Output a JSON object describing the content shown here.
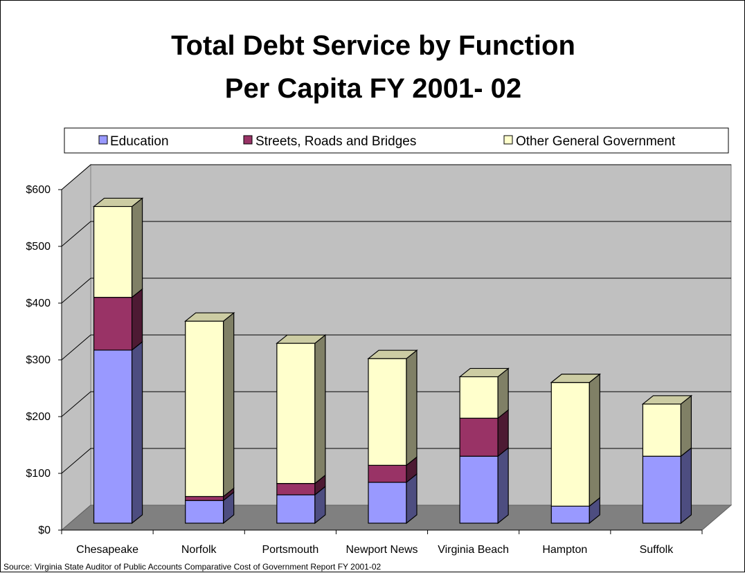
{
  "chart_data": {
    "type": "bar",
    "stacked": true,
    "style": "3d",
    "title_lines": [
      "Total Debt Service by Function",
      "Per Capita FY 2001- 02"
    ],
    "categories": [
      "Chesapeake",
      "Norfolk",
      "Portsmouth",
      "Newport News",
      "Virginia Beach",
      "Hampton",
      "Suffolk"
    ],
    "series": [
      {
        "name": "Education",
        "color": "#9999ff",
        "values": [
          305,
          40,
          50,
          72,
          118,
          30,
          118
        ]
      },
      {
        "name": "Streets, Roads and Bridges",
        "color": "#993366",
        "values": [
          93,
          7,
          20,
          30,
          67,
          0,
          0
        ]
      },
      {
        "name": "Other General Government",
        "color": "#ffffcc",
        "values": [
          160,
          309,
          247,
          188,
          73,
          218,
          92
        ]
      }
    ],
    "ylim": [
      0,
      600
    ],
    "yticks": [
      0,
      100,
      200,
      300,
      400,
      500,
      600
    ],
    "ytick_labels": [
      "$0",
      "$100",
      "$200",
      "$300",
      "$400",
      "$500",
      "$600"
    ],
    "xlabel": "",
    "ylabel": "",
    "legend_position": "top",
    "grid": true,
    "wall_color": "#c0c0c0",
    "floor_color": "#808080",
    "source_note": "Source: Virginia State Auditor of Public Accounts Comparative Cost of Government Report FY 2001-02"
  }
}
